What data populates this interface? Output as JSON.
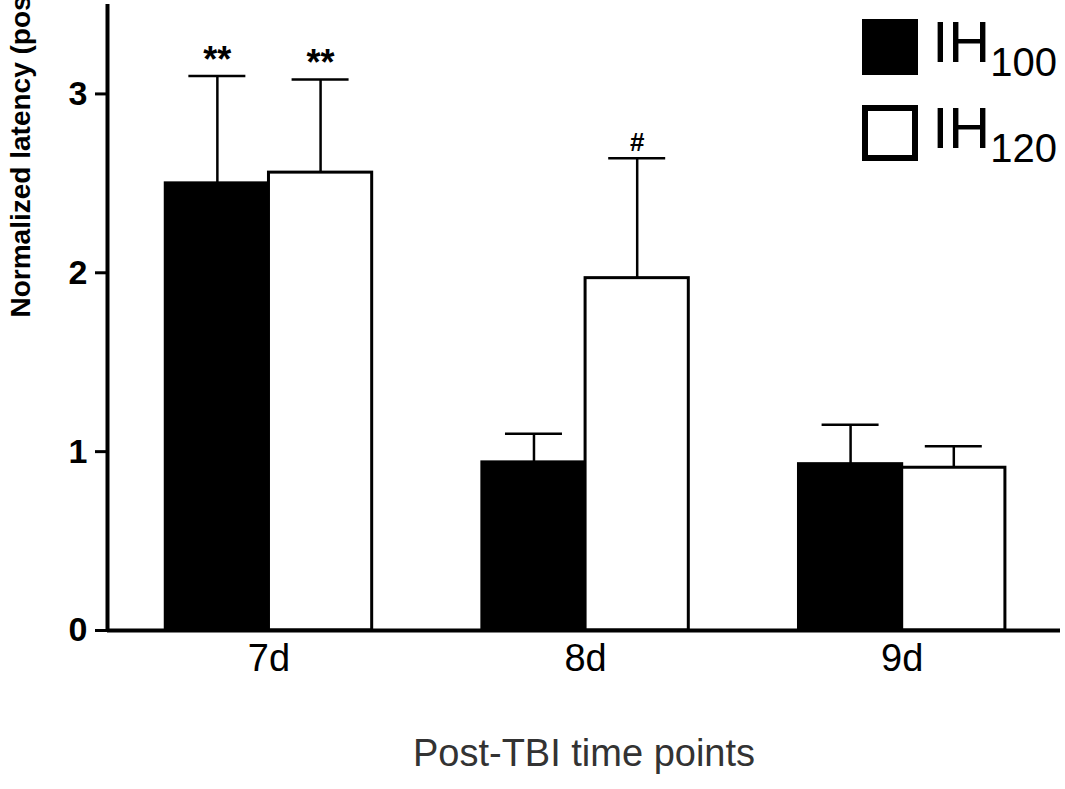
{
  "chart_data": {
    "type": "bar",
    "x_label": "Post-TBI time points",
    "y_label": "Normalized latency (post/pre)",
    "categories": [
      "7d",
      "8d",
      "9d"
    ],
    "series": [
      {
        "name": "IH100",
        "color": "#000000",
        "values": [
          2.5,
          0.94,
          0.93
        ],
        "errors": [
          0.6,
          0.16,
          0.22
        ],
        "annotations": [
          "**",
          null,
          null
        ]
      },
      {
        "name": "IH120",
        "color": "#ffffff",
        "values": [
          2.56,
          1.97,
          0.91
        ],
        "errors": [
          0.52,
          0.67,
          0.12
        ],
        "annotations": [
          "**",
          "#",
          null
        ]
      }
    ],
    "ylim": [
      0,
      3.5
    ],
    "yticks": [
      0,
      1,
      2,
      3
    ],
    "legend": "top-right"
  }
}
